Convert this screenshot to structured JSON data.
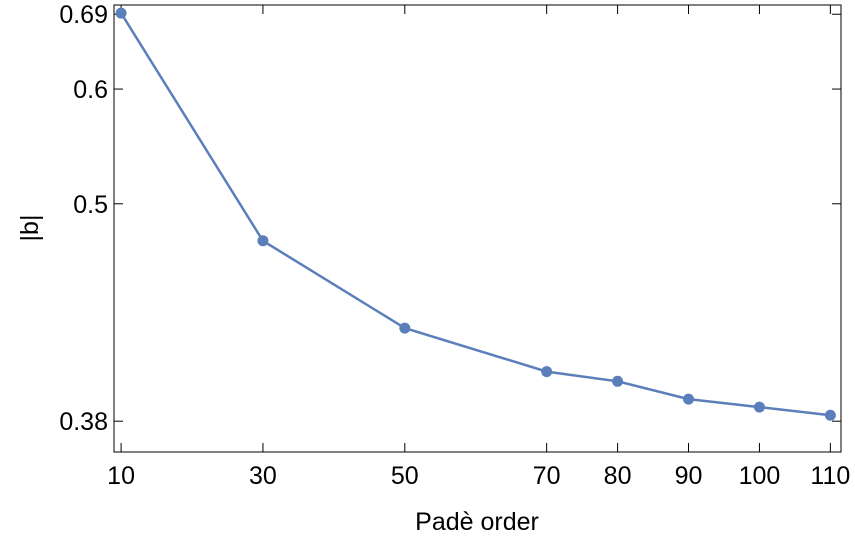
{
  "chart_data": {
    "type": "line",
    "xlabel": "Padè order",
    "ylabel": "|b|",
    "x": [
      10,
      30,
      50,
      70,
      80,
      90,
      100,
      110
    ],
    "y": [
      0.6915,
      0.4745,
      0.4235,
      0.402,
      0.3975,
      0.3895,
      0.386,
      0.3825
    ],
    "xticks": [
      10,
      30,
      50,
      70,
      80,
      90,
      100,
      110
    ],
    "xtick_labels": [
      "10",
      "30",
      "50",
      "70",
      "80",
      "90",
      "100",
      "110"
    ],
    "yticks": [
      0.38,
      0.5,
      0.6,
      0.69
    ],
    "ytick_labels": [
      "0.38",
      "0.5",
      "0.6",
      "0.69"
    ],
    "xlim": [
      9,
      111.5
    ],
    "ylim": [
      0.3675,
      0.703
    ],
    "yscale": "reciprocal",
    "grid": false,
    "legend": "none",
    "colors": {
      "series": "#5b7fba",
      "frame": "#000000"
    }
  }
}
